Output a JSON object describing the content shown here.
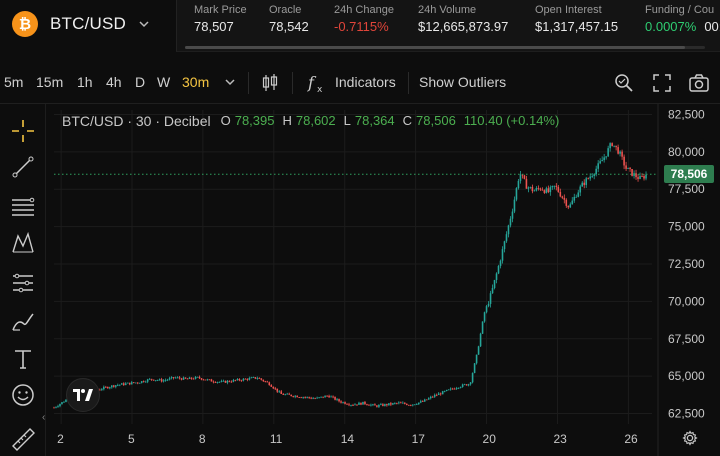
{
  "market": {
    "pair": "BTC/USD",
    "coin_symbol": "₿",
    "brand_color": "#f7931a",
    "stats": [
      {
        "label": "Mark Price",
        "value": "78,507",
        "tone": "neutral"
      },
      {
        "label": "Oracle",
        "value": "78,542",
        "tone": "neutral"
      },
      {
        "label": "24h Change",
        "value": "-0.7115%",
        "tone": "neg"
      },
      {
        "label": "24h Volume",
        "value": "$12,665,873.97",
        "tone": "neutral"
      },
      {
        "label": "Open Interest",
        "value": "$1,317,457.15",
        "tone": "neutral"
      },
      {
        "label": "Funding / Cou",
        "value": "0.0007%",
        "tone": "pos"
      }
    ],
    "funding_extra": "00:"
  },
  "toolbar": {
    "intervals": [
      "5m",
      "15m",
      "1h",
      "4h",
      "D",
      "W",
      "30m"
    ],
    "active_interval": "30m",
    "indicators_label": "Indicators",
    "outliers_label": "Show Outliers",
    "icons": [
      "chevron-down-icon",
      "candles-icon",
      "function-icon",
      "magnifier-icon",
      "fullscreen-icon",
      "camera-icon"
    ]
  },
  "tools": [
    "crosshair-icon",
    "trendline-icon",
    "fib-icon",
    "pattern-icon",
    "measure-icon",
    "brush-icon",
    "text-icon",
    "emoji-icon",
    "ruler-icon"
  ],
  "legend": {
    "title": "BTC/USD · 30 · Decibel",
    "open_key": "O",
    "open": "78,395",
    "high_key": "H",
    "high": "78,602",
    "low_key": "L",
    "low": "78,364",
    "close_key": "C",
    "close": "78,506",
    "change": "110.40 (+0.14%)"
  },
  "last_price_tag": "78,506",
  "colors": {
    "up": "#26a69a",
    "down": "#ef5350",
    "accent": "#f5c542",
    "tag": "#2e7d4f"
  },
  "chart_data": {
    "type": "candlestick",
    "title": "BTC/USD · 30 · Decibel",
    "ylim": [
      61800,
      82800
    ],
    "y_ticks": [
      62500,
      65000,
      67500,
      70000,
      72500,
      75000,
      77500,
      80000,
      82500
    ],
    "y_tick_labels": [
      "62,500",
      "65,000",
      "67,500",
      "70,000",
      "72,500",
      "75,000",
      "77,500",
      "80,000",
      "82,500"
    ],
    "x_tick_labels": [
      "2",
      "5",
      "8",
      "11",
      "14",
      "17",
      "20",
      "23",
      "26"
    ],
    "x_tick_days": [
      2,
      5,
      8,
      11,
      14,
      17,
      20,
      23,
      26
    ],
    "x_range": [
      1.7,
      27.0
    ],
    "last_price": 78506,
    "close_series": {
      "x": [
        1.7,
        2.3,
        2.8,
        3.3,
        3.8,
        4.3,
        4.8,
        5.3,
        5.8,
        6.3,
        6.8,
        7.3,
        7.8,
        8.3,
        8.8,
        9.3,
        9.8,
        10.3,
        10.8,
        11.3,
        11.8,
        12.3,
        12.8,
        13.3,
        13.8,
        14.3,
        14.8,
        15.3,
        15.8,
        16.3,
        16.8,
        17.3,
        17.8,
        18.3,
        18.8,
        19.3,
        19.6,
        19.9,
        20.2,
        20.5,
        20.8,
        21.1,
        21.4,
        21.7,
        22.0,
        22.3,
        22.6,
        22.9,
        23.2,
        23.5,
        23.8,
        24.1,
        24.4,
        24.7,
        25.0,
        25.3,
        25.6,
        25.9,
        26.2,
        26.5,
        26.8
      ],
      "y": [
        62900,
        63500,
        63300,
        64000,
        64200,
        64400,
        64500,
        64600,
        64800,
        64700,
        64900,
        64800,
        64900,
        64700,
        64600,
        64700,
        64800,
        64900,
        64500,
        63800,
        63700,
        63600,
        63500,
        63700,
        63300,
        63100,
        63200,
        63000,
        63100,
        63200,
        63100,
        63300,
        63700,
        64000,
        64300,
        64500,
        66500,
        69200,
        70500,
        72300,
        74200,
        76200,
        78600,
        77700,
        77400,
        77600,
        77300,
        77700,
        77000,
        76300,
        77200,
        77900,
        78400,
        79000,
        79700,
        80600,
        80000,
        78900,
        78500,
        78200,
        78506
      ]
    }
  }
}
